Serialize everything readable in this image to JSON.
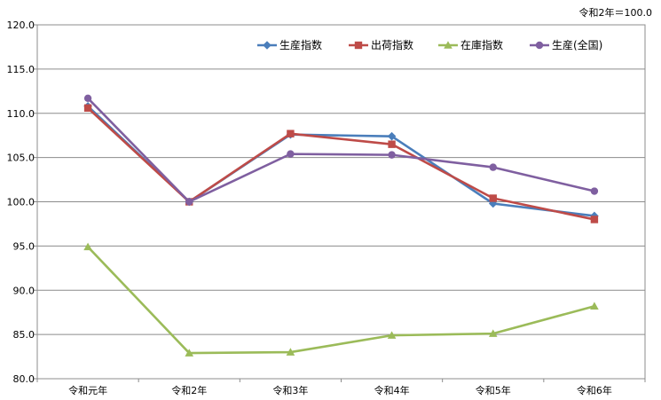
{
  "note": "令和2年＝100.0",
  "chart_data": {
    "type": "line",
    "categories": [
      "令和元年",
      "令和2年",
      "令和3年",
      "令和4年",
      "令和5年",
      "令和6年"
    ],
    "series": [
      {
        "name": "生産指数",
        "values": [
          110.8,
          100.0,
          107.6,
          107.4,
          99.8,
          98.4
        ],
        "color": "#4a7ebb",
        "marker": "diamond"
      },
      {
        "name": "出荷指数",
        "values": [
          110.6,
          100.0,
          107.7,
          106.5,
          100.4,
          98.0
        ],
        "color": "#be4b48",
        "marker": "square"
      },
      {
        "name": "在庫指数",
        "values": [
          94.9,
          82.9,
          83.0,
          84.9,
          85.1,
          88.2
        ],
        "color": "#9bbb59",
        "marker": "triangle"
      },
      {
        "name": "生産(全国)",
        "values": [
          111.7,
          100.0,
          105.4,
          105.3,
          103.9,
          101.2
        ],
        "color": "#7f5fa0",
        "marker": "circle"
      }
    ],
    "ylim": [
      80.0,
      120.0
    ],
    "yticks": [
      "80.0",
      "85.0",
      "90.0",
      "95.0",
      "100.0",
      "105.0",
      "110.0",
      "115.0",
      "120.0"
    ],
    "grid": true,
    "legend_position": "top-right"
  }
}
